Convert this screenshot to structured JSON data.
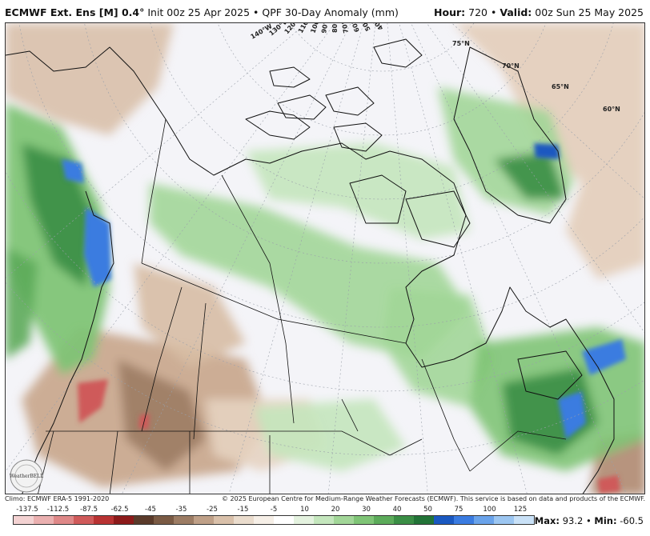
{
  "header": {
    "model": "ECMWF Ext. Ens [M] 0.4°",
    "init": "Init 00z 25 Apr 2025",
    "bullet": "•",
    "product": "QPF 30-Day Anomaly (mm)",
    "hour_label": "Hour:",
    "hour_value": "720",
    "valid_label": "Valid:",
    "valid_value": "00z Sun 25 May 2025"
  },
  "map": {
    "lon_labels": [
      "140°W",
      "130°W",
      "120°W",
      "110°W",
      "100°W",
      "90°W",
      "80°W",
      "70°W",
      "60°W",
      "50°W",
      "40°W"
    ],
    "lat_labels": [
      "75°N",
      "70°N",
      "65°N",
      "60°N"
    ],
    "logo_text": "WeatherBELL"
  },
  "credits": {
    "left": "Climo: ECMWF ERA-5 1991-2020",
    "right": "© 2025 European Centre for Medium-Range Weather Forecasts (ECMWF). This service is based on data and products of the ECMWF."
  },
  "colorbar": {
    "labels": [
      "-137.5",
      "-112.5",
      "-87.5",
      "-62.5",
      "-45",
      "-35",
      "-25",
      "-15",
      "-5",
      "10",
      "20",
      "30",
      "40",
      "50",
      "75",
      "100",
      "125"
    ],
    "colors": [
      "#f3d2d2",
      "#eab0b0",
      "#de8888",
      "#cf5a5a",
      "#b83232",
      "#8c1a1a",
      "#5a3a2a",
      "#7a5a44",
      "#9c7c64",
      "#bfa088",
      "#d9c0aa",
      "#eadccd",
      "#f6efe7",
      "#ffffff",
      "#e4f2df",
      "#c4e6bd",
      "#a2d698",
      "#7fc476",
      "#5cab5a",
      "#3a8e45",
      "#227337",
      "#1a58c0",
      "#3a7be0",
      "#6aa3ea",
      "#9cc6f1",
      "#c9e1f7"
    ]
  },
  "stats": {
    "max_label": "Max:",
    "max_value": "93.2",
    "sep": "•",
    "min_label": "Min:",
    "min_value": "-60.5"
  }
}
